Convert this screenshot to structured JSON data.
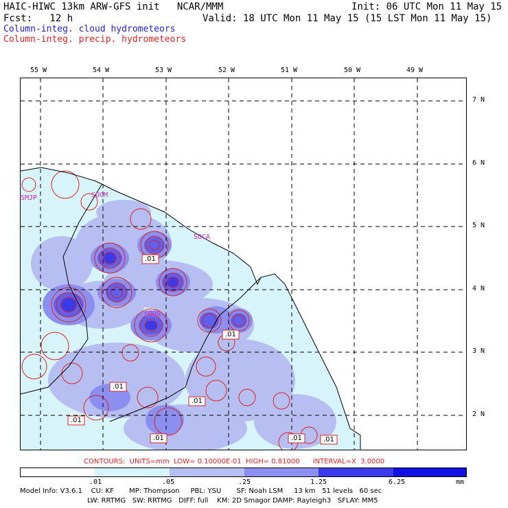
{
  "header": {
    "line1_left": "HAIC-HIWC 13km ARW-GFS init   NCAR/MMM",
    "line1_right": "Init: 06 UTC Mon 11 May 15",
    "line2_left": "Fcst:   12 h",
    "line2_right": "Valid: 18 UTC Mon 11 May 15 (15 LST Mon 11 May 15)",
    "field1": "Column-integ. cloud hydrometeors",
    "field2": "Column-integ. precip. hydrometeors"
  },
  "colors": {
    "cloud_text": "#2222cc",
    "precip_text": "#dd2222",
    "station_text": "#cc22cc",
    "shade1": "#d8f4fb",
    "shade2": "#b7bff2",
    "shade3": "#8c8ff0",
    "shade4": "#6060ee",
    "shade5": "#3a3ae8",
    "shade6": "#1010e0"
  },
  "map": {
    "lon_labels": [
      "55 W",
      "54 W",
      "53 W",
      "52 W",
      "51 W",
      "50 W",
      "49 W"
    ],
    "lat_labels": [
      "7 N",
      "6 N",
      "5 N",
      "4 N",
      "3 N",
      "2 N"
    ],
    "stations": [
      "SMJP",
      "SOCM",
      "SOCA",
      "SOOS"
    ],
    "contour_labels": [
      ".01",
      ".01",
      ".01",
      ".01",
      ".01",
      ".01",
      ".01",
      ".01"
    ]
  },
  "contours_line": "CONTOURS:  UNITS=mm  LOW= 0.10000E-01  HIGH= 0.81000      INTERVAL=X  3.0000",
  "colorbar": {
    "ticks": [
      ".01",
      ".05",
      ".25",
      "1.25",
      "6.25"
    ],
    "unit": "mm"
  },
  "footer": {
    "line1": "Model Info: V3.6.1    CU: KF       MP: Thompson     PBL: YSU       SF: Noah LSM     13 km   51 levels   60 sec",
    "line2": "LW: RRTMG   SW: RRTMG   DIFF: full    KM: 2D Smagor DAMP: Rayleigh3   SFLAY: MM5"
  }
}
